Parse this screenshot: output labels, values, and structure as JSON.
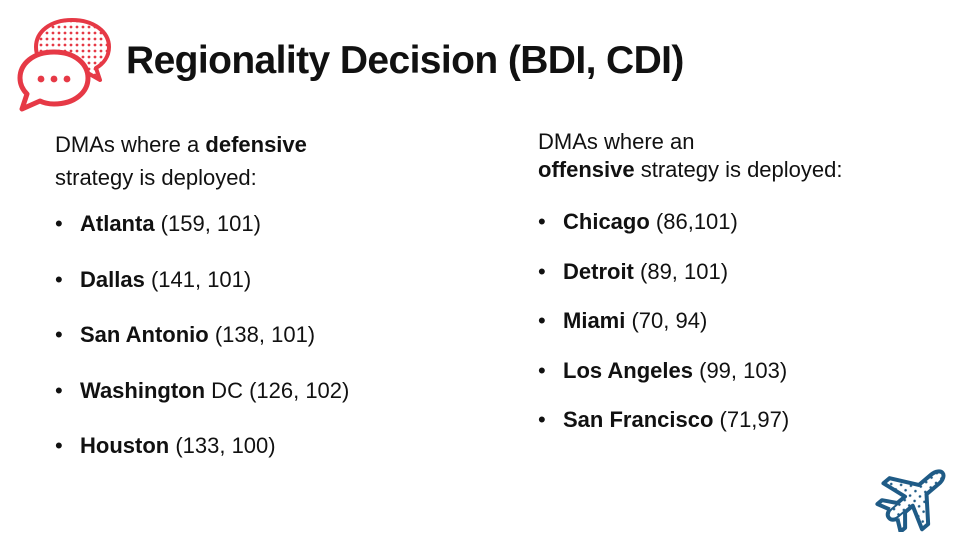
{
  "title": "Regionality Decision (BDI, CDI)",
  "colors": {
    "accent_red": "#e63946",
    "accent_blue": "#1f5b86"
  },
  "icons": {
    "logo": "chat-bubbles-icon",
    "corner": "airplane-icon"
  },
  "defensive": {
    "intro_pre": "DMAs where a ",
    "intro_bold": "defensive",
    "intro_post": " strategy is deployed:",
    "items": [
      {
        "city": "Atlanta",
        "rest": " (159, 101)"
      },
      {
        "city": "Dallas",
        "rest": " (141, 101)"
      },
      {
        "city": "San Antonio",
        "rest": " (138, 101)"
      },
      {
        "city": "Washington",
        "rest": " DC (126, 102)"
      },
      {
        "city": "Houston",
        "rest": " (133, 100)"
      }
    ]
  },
  "offensive": {
    "intro_pre": "DMAs where an ",
    "intro_bold": "offensive",
    "intro_post": " strategy is deployed:",
    "items": [
      {
        "city": "Chicago",
        "rest": " (86,101)"
      },
      {
        "city": "Detroit",
        "rest": " (89, 101)"
      },
      {
        "city": "Miami",
        "rest": " (70, 94)"
      },
      {
        "city": "Los Angeles",
        "rest": " (99, 103)"
      },
      {
        "city": "San Francisco",
        "rest": " (71,97)"
      }
    ]
  }
}
